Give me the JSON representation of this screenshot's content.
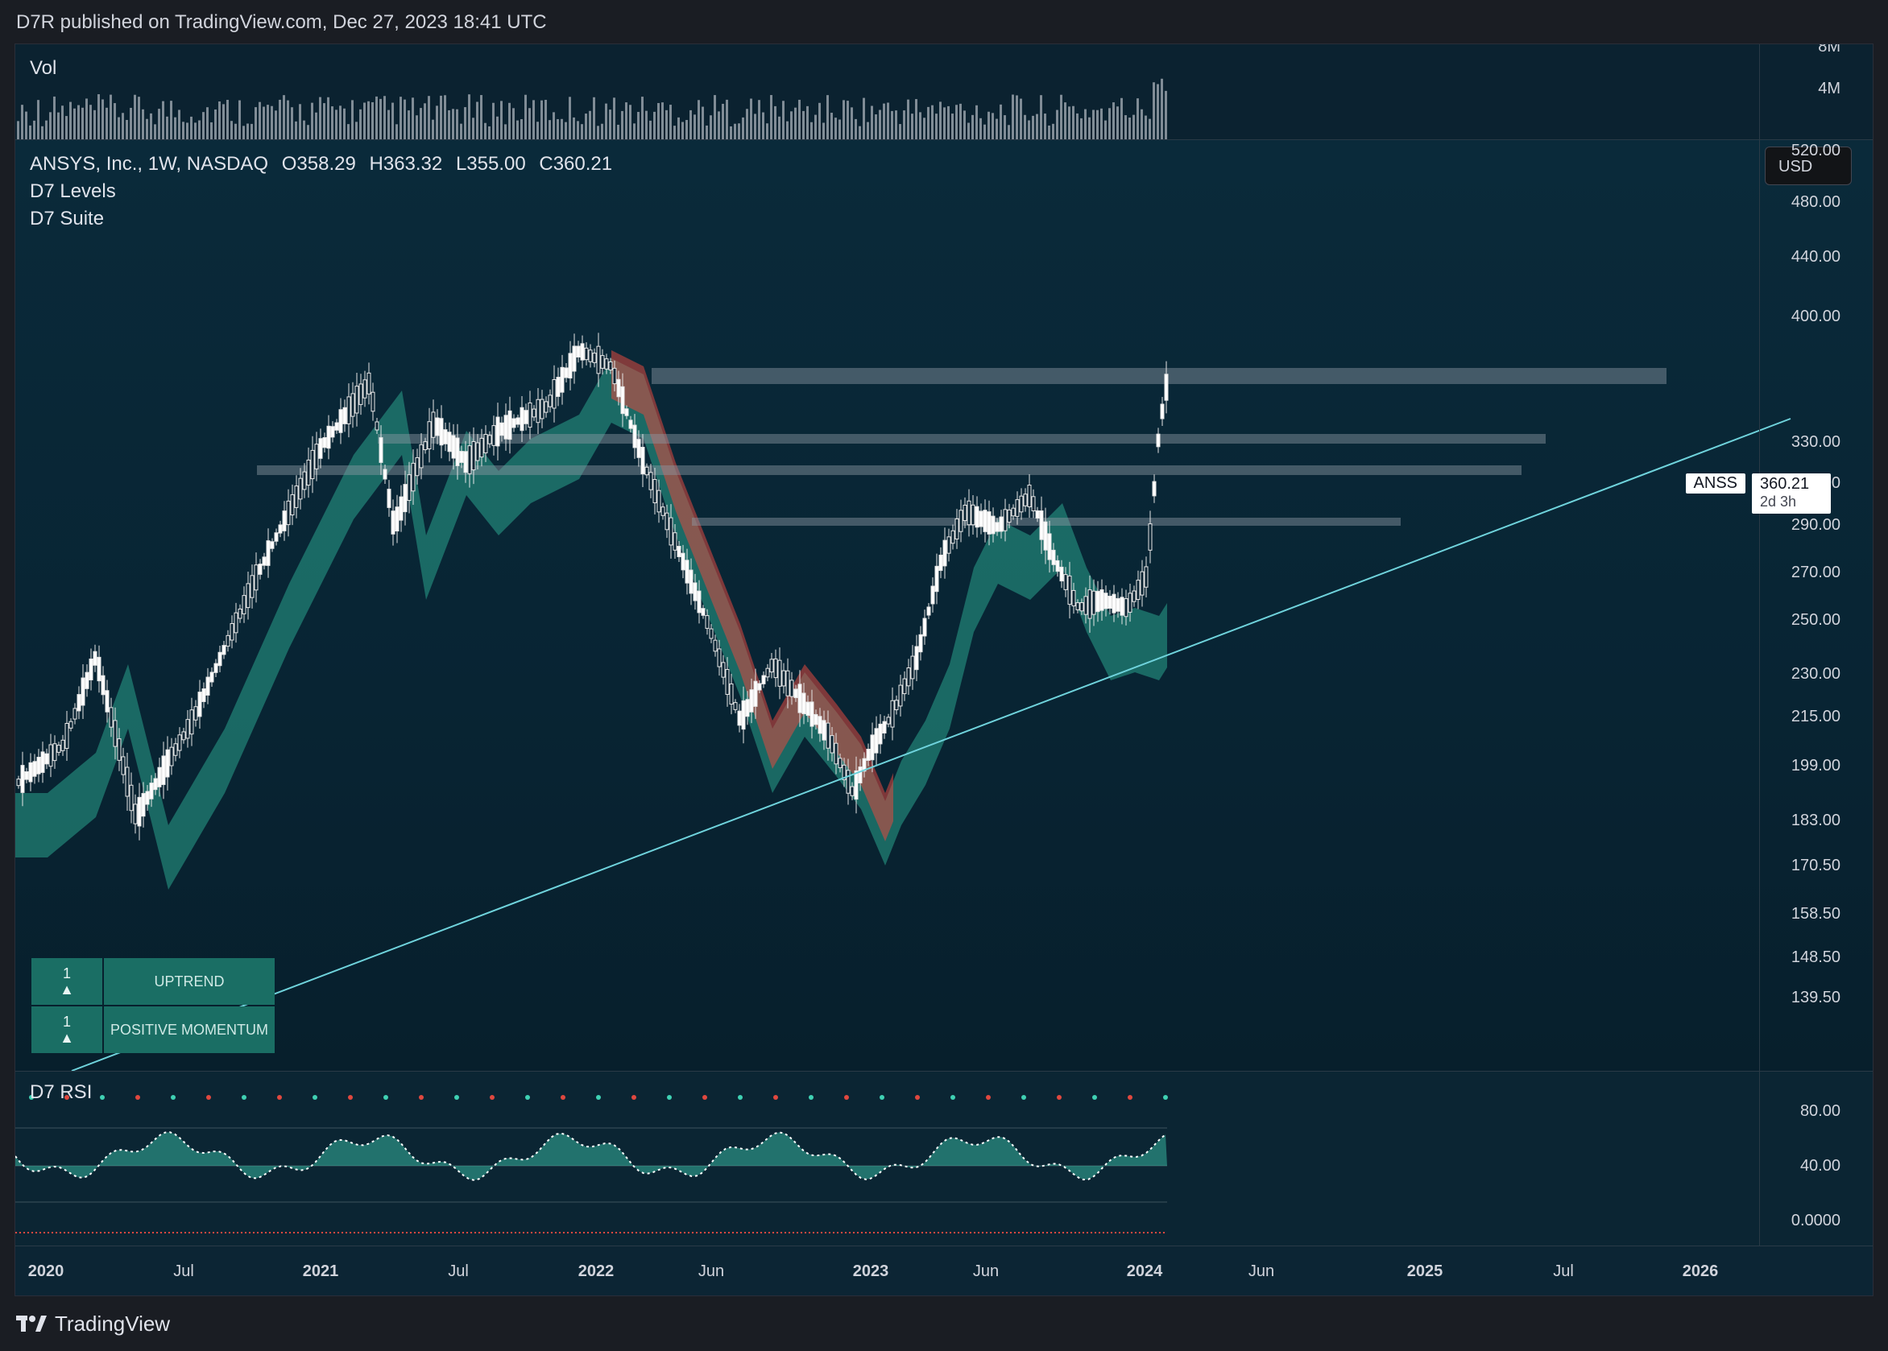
{
  "header": {
    "publisher_line": "D7R published on TradingView.com, Dec 27, 2023 18:41 UTC"
  },
  "volume_pane": {
    "title": "Vol",
    "axis_labels": [
      "8M",
      "4M"
    ]
  },
  "main_pane": {
    "symbol_line": "ANSYS, Inc., 1W, NASDAQ",
    "ohlc": {
      "open": "O358.29",
      "high": "H363.32",
      "low": "L355.00",
      "close": "C360.21"
    },
    "indicators": [
      "D7 Levels",
      "D7 Suite"
    ],
    "currency_button": "USD",
    "price_axis": [
      "520.00",
      "480.00",
      "440.00",
      "400.00",
      "330.00",
      "310.00",
      "290.00",
      "270.00",
      "250.00",
      "230.00",
      "215.00",
      "199.00",
      "183.00",
      "170.50",
      "158.50",
      "148.50",
      "139.50"
    ],
    "last_price": {
      "ticker": "ANSS",
      "price": "360.21",
      "countdown": "2d 3h"
    },
    "status_table": [
      {
        "count": "1",
        "arrow": "▲",
        "label": "UPTREND"
      },
      {
        "count": "1",
        "arrow": "▲",
        "label": "POSITIVE MOMENTUM"
      }
    ],
    "colors": {
      "bull": "#3fd1b3",
      "bear": "#e0483f",
      "trendline": "#6fd3dc",
      "level_band": "#8d9aa3"
    }
  },
  "rsi_pane": {
    "title": "D7 RSI",
    "axis_labels": [
      "80.00",
      "40.00",
      "0.0000"
    ]
  },
  "time_axis": [
    "2020",
    "Jul",
    "2021",
    "Jul",
    "2022",
    "Jun",
    "2023",
    "Jun",
    "2024",
    "Jun",
    "2025",
    "Jul",
    "2026"
  ],
  "footer": {
    "brand": "TradingView"
  }
}
